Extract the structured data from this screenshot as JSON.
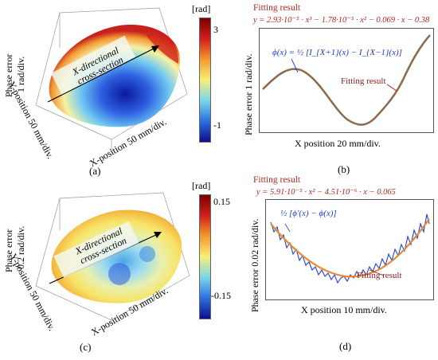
{
  "panel_a": {
    "label": "(a)",
    "colorbar": {
      "unit": "[rad]",
      "max_tick": "3",
      "min_tick": "-1"
    },
    "z_axis_label_line1": "Phase error",
    "z_axis_label_line2": "1 rad/div.",
    "y_axis_label": "Y-position 50 mm/div.",
    "x_axis_label": "X-position 50 mm/div.",
    "section_line1": "X-directional",
    "section_line2": "cross-section"
  },
  "panel_b": {
    "label": "(b)",
    "header": "Fitting result",
    "equation": "y = 2.93·10⁻⁵ · x³ − 1.78·10⁻⁵ · x² − 0.069 · x − 0.38",
    "y_axis_label": "Phase error 1 rad/div.",
    "x_axis_label": "X position 20 mm/div.",
    "phi_eq": "ϕ(x) = ½ [I_{X+1}(x) − I_{X−1}(x)]",
    "fit_annotation": "Fitting result"
  },
  "panel_c": {
    "label": "(c)",
    "colorbar": {
      "unit": "[rad]",
      "max_tick": "0.15",
      "min_tick": "-0.15"
    },
    "z_axis_label_line1": "Phase error",
    "z_axis_label_line2": "0.2 rad/div.",
    "y_axis_label": "Y-position 50 mm/div.",
    "x_axis_label": "X-position 50 mm/div.",
    "section_line1": "X-directional",
    "section_line2": "cross-section"
  },
  "panel_d": {
    "label": "(d)",
    "header": "Fitting result",
    "equation": "y = 5.91·10⁻⁵ · x² − 4.51·10⁻⁶ · x − 0.065",
    "y_axis_label": "Phase error 0.02 rad/div.",
    "x_axis_label": "X position 10 mm/div.",
    "phi_eq": "½ [ϕ′(x) − ϕ(x)]",
    "fit_annotation": "Fitting result"
  },
  "colors": {
    "fit_red": "#b3261e",
    "curve_brown": "#8c6a4f",
    "noise_blue": "#1f3fd6",
    "fit_orange": "#e8892e"
  }
}
